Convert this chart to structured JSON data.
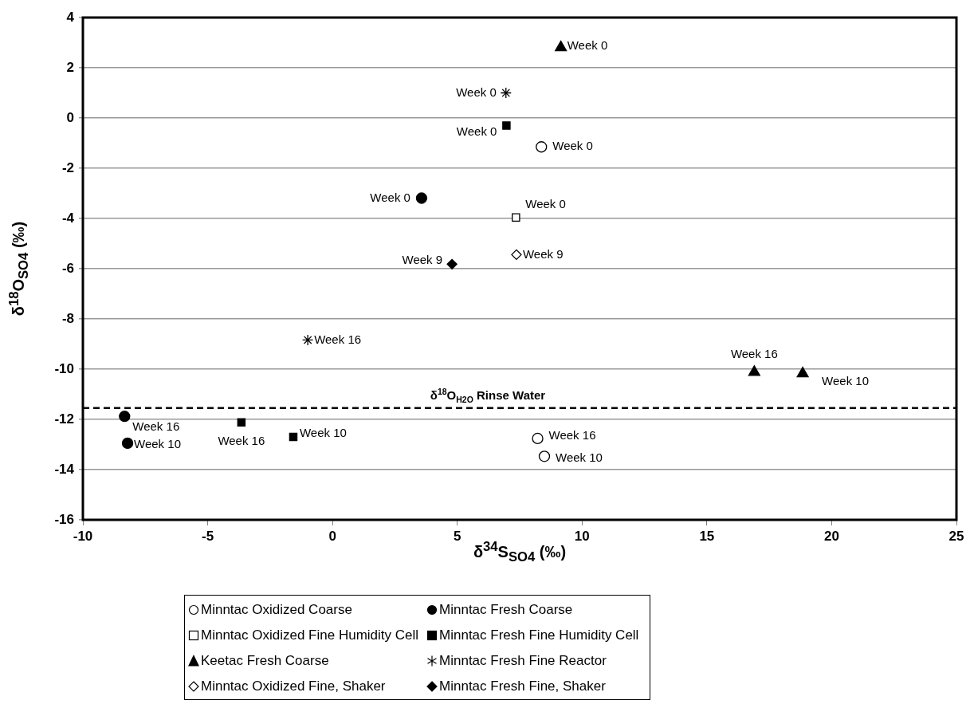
{
  "chart_data": {
    "type": "scatter",
    "xlabel": "δ$^{34}$S$_{SO4}$ (‰)",
    "ylabel": "δ$^{18}$O$_{SO4}$ (‰)",
    "xlim": [
      -10,
      25
    ],
    "xticks": [
      -10,
      -5,
      0,
      5,
      10,
      15,
      20,
      25
    ],
    "ylim": [
      -16,
      4
    ],
    "yticks": [
      -16,
      -14,
      -12,
      -10,
      -8,
      -6,
      -4,
      -2,
      0,
      2,
      4
    ],
    "grid": "y",
    "legend": "bottom",
    "ref_lines": [
      {
        "axis": "y",
        "value": -11.55,
        "label": "δ$^{18}$O$_{H2O}$ Rinse Water",
        "color": "#000000",
        "line_style": "dashed"
      }
    ],
    "series": [
      {
        "name": "Minntac Oxidized Coarse",
        "color": "#ffffff",
        "marker": "circle",
        "x": [
          8.37,
          8.22,
          8.49
        ],
        "values": [
          -1.15,
          -12.76,
          -13.47
        ],
        "value_labels": [
          "Week 0",
          "Week 16",
          "Week 10"
        ]
      },
      {
        "name": "Minntac Fresh Coarse",
        "color": "#000000",
        "marker": "circle",
        "x": [
          3.57,
          -8.33,
          -8.21
        ],
        "values": [
          -3.19,
          -11.88,
          -12.95
        ],
        "value_labels": [
          "Week 0",
          "Week 16",
          "Week 10"
        ]
      },
      {
        "name": "Minntac Oxidized Fine Humidity Cell",
        "color": "#ffffff",
        "marker": "square",
        "x": [
          7.35
        ],
        "values": [
          -3.96
        ],
        "value_labels": [
          "Week 0"
        ]
      },
      {
        "name": "Minntac Fresh Fine Humidity Cell",
        "color": "#000000",
        "marker": "square",
        "x": [
          6.97,
          -3.65,
          -1.57
        ],
        "values": [
          -0.3,
          -12.12,
          -12.7
        ],
        "value_labels": [
          "Week 0",
          "Week 16",
          "Week 10"
        ]
      },
      {
        "name": "Keetac Fresh Coarse",
        "color": "#000000",
        "marker": "triangle",
        "x": [
          9.15,
          16.9,
          18.84
        ],
        "values": [
          2.81,
          -10.12,
          -10.18
        ],
        "value_labels": [
          "Week 0",
          "Week 16",
          "Week 10"
        ]
      },
      {
        "name": "Minntac Fresh Fine Reactor",
        "color": "#000000",
        "marker": "cross",
        "x": [
          6.95,
          -0.99
        ],
        "values": [
          1.0,
          -8.84
        ],
        "value_labels": [
          "Week 0",
          "Week 16"
        ]
      },
      {
        "name": "Minntac Oxidized Fine, Shaker",
        "color": "#ffffff",
        "marker": "diamond",
        "x": [
          7.37
        ],
        "values": [
          -5.44
        ],
        "value_labels": [
          "Week 9"
        ]
      },
      {
        "name": "Minntac Fresh Fine, Shaker",
        "color": "#000000",
        "marker": "diamond",
        "x": [
          4.79
        ],
        "values": [
          -5.82
        ],
        "value_labels": [
          "Week 9"
        ]
      }
    ]
  }
}
